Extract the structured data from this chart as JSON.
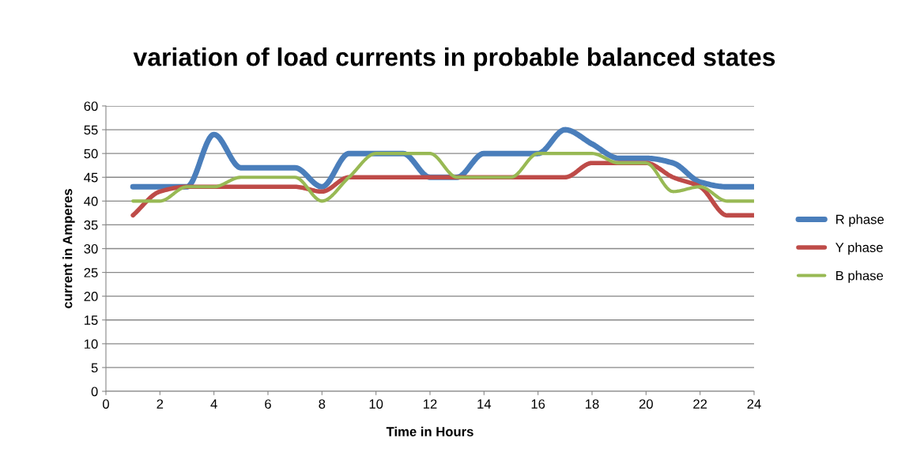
{
  "chart_data": {
    "type": "line",
    "title": "variation of load currents in probable balanced states",
    "xlabel": "Time in Hours",
    "ylabel": "current in Amperes",
    "x": [
      1,
      2,
      3,
      4,
      5,
      6,
      7,
      8,
      9,
      10,
      11,
      12,
      13,
      14,
      15,
      16,
      17,
      18,
      19,
      20,
      21,
      22,
      23,
      24
    ],
    "series": [
      {
        "name": "R phase",
        "color": "#4a7ebb",
        "values": [
          43,
          43,
          43,
          54,
          47,
          47,
          47,
          43,
          50,
          50,
          50,
          45,
          45,
          50,
          50,
          50,
          55,
          52,
          49,
          49,
          48,
          44,
          43,
          43
        ]
      },
      {
        "name": "Y phase",
        "color": "#be4b48",
        "values": [
          37,
          42,
          43,
          43,
          43,
          43,
          43,
          42,
          45,
          45,
          45,
          45,
          45,
          45,
          45,
          45,
          45,
          48,
          48,
          48,
          45,
          43,
          37,
          37
        ]
      },
      {
        "name": "B phase",
        "color": "#98b954",
        "values": [
          40,
          40,
          43,
          43,
          45,
          45,
          45,
          40,
          45,
          50,
          50,
          50,
          45,
          45,
          45,
          50,
          50,
          50,
          48,
          48,
          42,
          43,
          40,
          40
        ]
      }
    ],
    "xlim": [
      0,
      24
    ],
    "xticks": [
      0,
      2,
      4,
      6,
      8,
      10,
      12,
      14,
      16,
      18,
      20,
      22,
      24
    ],
    "ylim": [
      0,
      60
    ],
    "yticks": [
      0,
      5,
      10,
      15,
      20,
      25,
      30,
      35,
      40,
      45,
      50,
      55,
      60
    ],
    "grid": "y",
    "legend": "right",
    "marker": "none",
    "line_style": "solid"
  }
}
